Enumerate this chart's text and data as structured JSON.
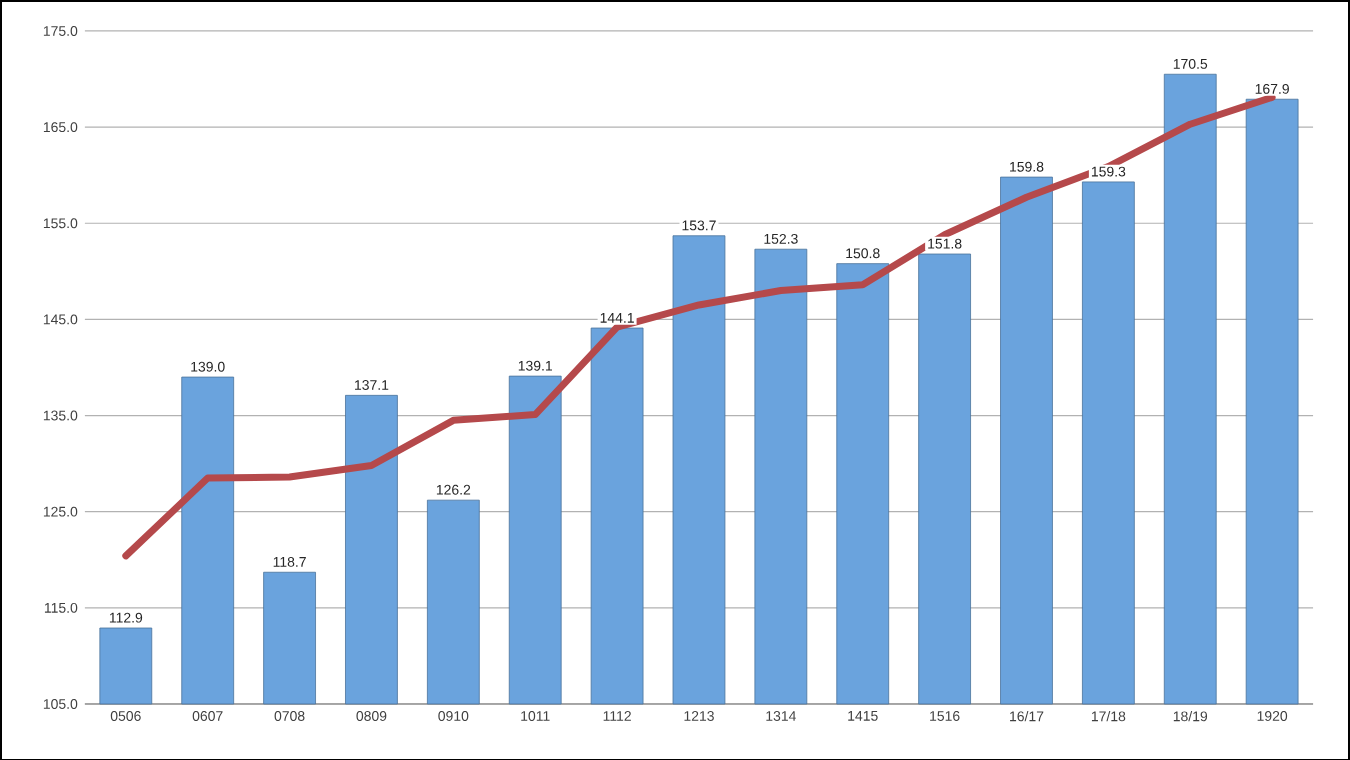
{
  "chart_data": {
    "type": "bar",
    "categories": [
      "0506",
      "0607",
      "0708",
      "0809",
      "0910",
      "1011",
      "1112",
      "1213",
      "1314",
      "1415",
      "1516",
      "16/17",
      "17/18",
      "18/19",
      "1920"
    ],
    "series": [
      {
        "color": "#6aa3dd",
        "values": [
          112.9,
          139.0,
          118.7,
          137.1,
          126.2,
          139.1,
          144.1,
          153.7,
          152.3,
          150.8,
          151.8,
          159.8,
          159.3,
          170.5,
          167.9
        ],
        "value_labels": [
          "112.9",
          "139.0",
          "118.7",
          "137.1",
          "126.2",
          "139.1",
          "144.1",
          "153.7",
          "152.3",
          "150.8",
          "151.8",
          "159.8",
          "159.3",
          "170.5",
          "167.9"
        ]
      },
      {
        "type": "line",
        "color": "#b5494b",
        "values": [
          120.4,
          128.5,
          128.6,
          129.8,
          134.5,
          135.1,
          144.2,
          146.5,
          148.0,
          148.6,
          153.8,
          157.7,
          160.9,
          165.3,
          168.1
        ]
      }
    ],
    "ylim": [
      105,
      175
    ],
    "yticks": [
      {
        "value": 105,
        "label": "105.0"
      },
      {
        "value": 115,
        "label": "115.0"
      },
      {
        "value": 125,
        "label": "125.0"
      },
      {
        "value": 135,
        "label": "135.0"
      },
      {
        "value": 145,
        "label": "145.0"
      },
      {
        "value": 155,
        "label": "155.0"
      },
      {
        "value": 165,
        "label": "165.0"
      },
      {
        "value": 175,
        "label": "175.0"
      }
    ],
    "grid": "y",
    "marker": "none",
    "line_style": "solid"
  }
}
